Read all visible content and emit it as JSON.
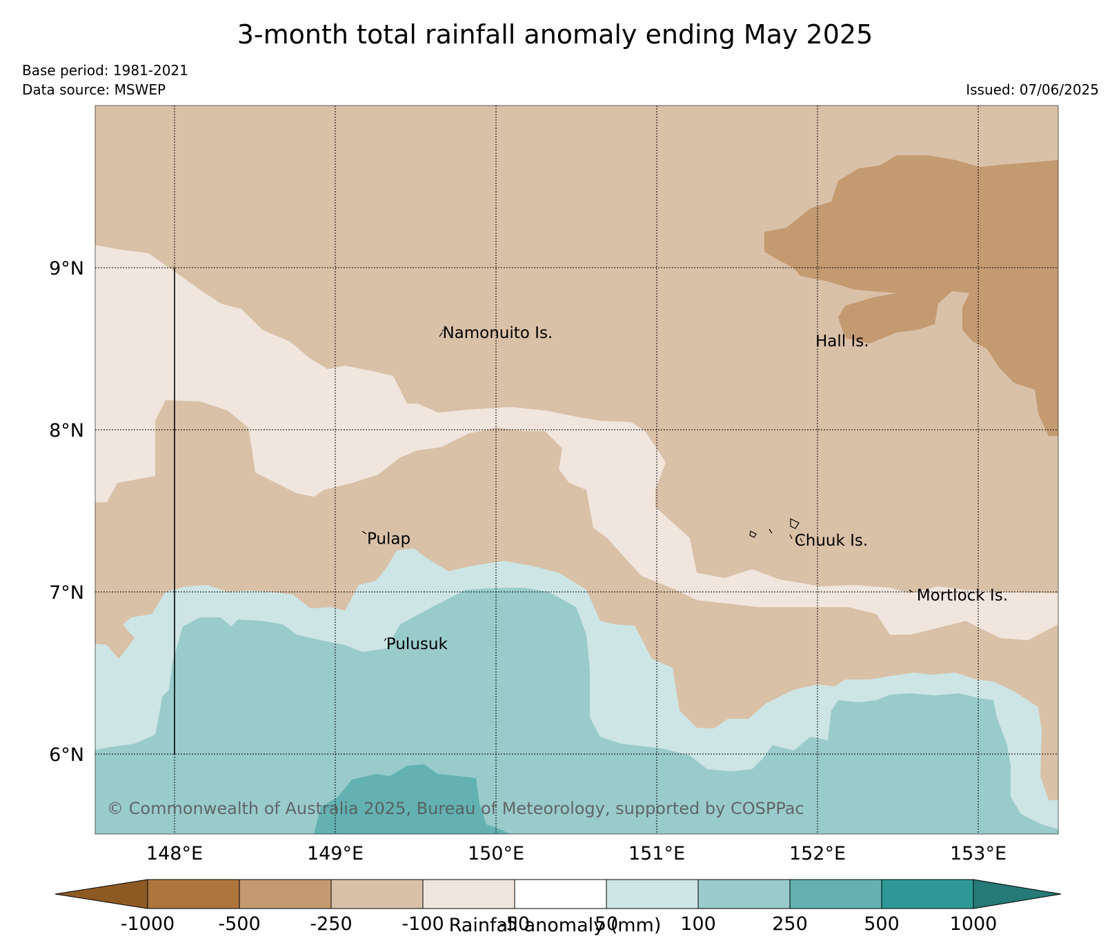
{
  "title": "3-month total rainfall anomaly ending May 2025",
  "base_period": "Base period: 1981-2021",
  "data_source": "Data source: MSWEP",
  "issued": "Issued: 07/06/2025",
  "copyright": "© Commonwealth of Australia 2025, Bureau of Meteorology, supported by COSPPac",
  "axes": {
    "lon_labels": [
      "148°E",
      "149°E",
      "150°E",
      "151°E",
      "152°E",
      "153°E"
    ],
    "lat_labels": [
      "9°N",
      "8°N",
      "7°N",
      "6°N"
    ]
  },
  "places": [
    {
      "name": "Namonuito Is.",
      "lon": 149.65,
      "lat": 8.6
    },
    {
      "name": "Hall Is.",
      "lon": 151.97,
      "lat": 8.55
    },
    {
      "name": "Pulap",
      "lon": 149.18,
      "lat": 7.33
    },
    {
      "name": "Chuuk Is.",
      "lon": 151.84,
      "lat": 7.32
    },
    {
      "name": "Mortlock Is.",
      "lon": 152.6,
      "lat": 6.98
    },
    {
      "name": "Pulusuk",
      "lon": 149.3,
      "lat": 6.68
    }
  ],
  "legend": {
    "title": "Rainfall anomaly (mm)",
    "tick_labels": [
      "-1000",
      "-500",
      "-250",
      "-100",
      "-50",
      "50",
      "100",
      "250",
      "500",
      "1000"
    ],
    "colors": [
      "#8e5a24",
      "#ad763d",
      "#c49a70",
      "#d9c1a8",
      "#f0e6de",
      "#ffffff",
      "#cde5e4",
      "#9acbcb",
      "#63b1b1",
      "#2e9896",
      "#257a78"
    ]
  }
}
